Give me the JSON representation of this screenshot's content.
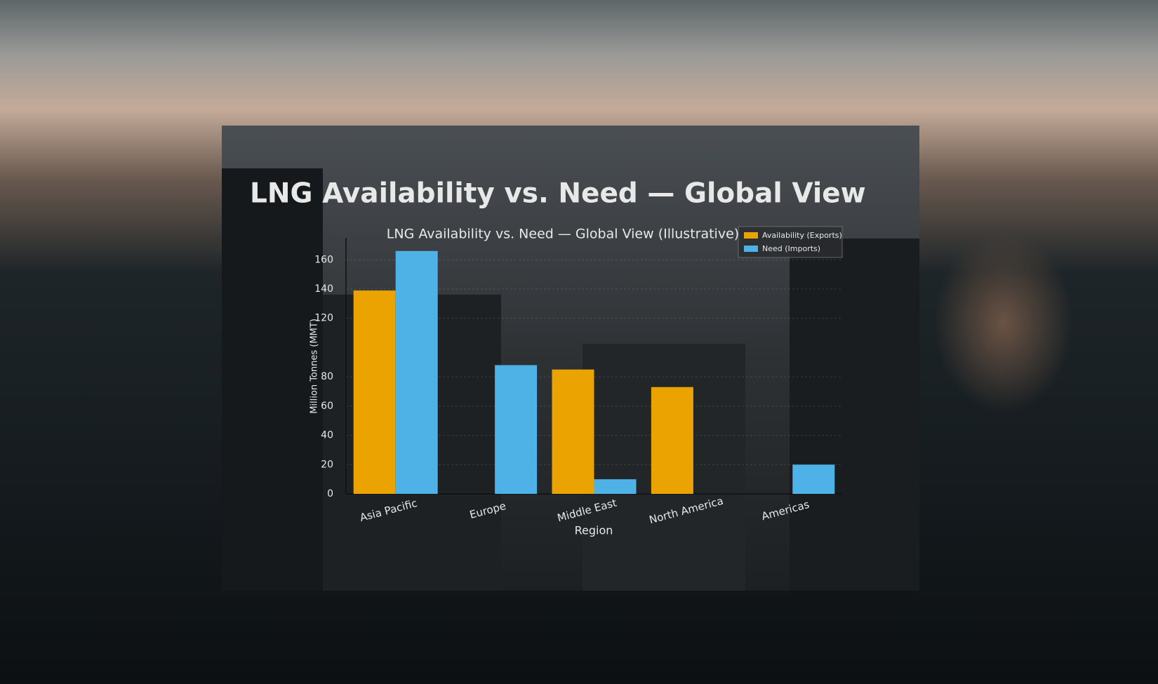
{
  "header": {
    "title": "LNG Availability vs. Need — Global View"
  },
  "chart_data": {
    "type": "bar",
    "title": "LNG Availability vs. Need — Global View (Illustrative)",
    "x_label": "Region",
    "y_label": "Million Tonnes (MMT)",
    "categories": [
      "Asia Pacific",
      "Europe",
      "Middle East",
      "North America",
      "Americas"
    ],
    "series": [
      {
        "name": "Availability (Exports)",
        "color": "#eaa300",
        "values": [
          139,
          null,
          85,
          73,
          null
        ]
      },
      {
        "name": "Need (Imports)",
        "color": "#4fb2e6",
        "values": [
          166,
          88,
          10,
          null,
          20
        ]
      }
    ],
    "ylim": [
      0,
      175
    ],
    "yticks": [
      0,
      20,
      40,
      60,
      80,
      120,
      140,
      160
    ],
    "grid": true,
    "legend": "upper right"
  }
}
